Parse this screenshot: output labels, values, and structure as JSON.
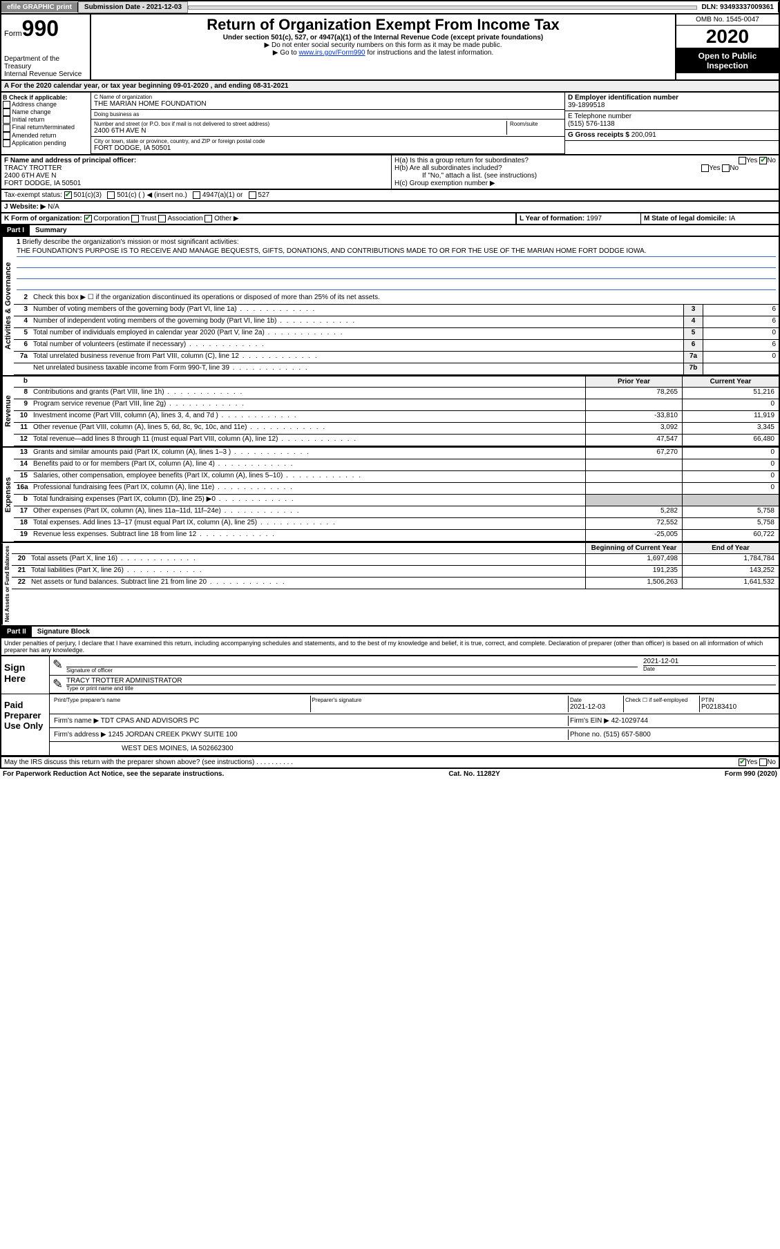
{
  "topbar": {
    "efile": "efile GRAPHIC print",
    "sub_label": "Submission Date - 2021-12-03",
    "dln": "DLN: 93493337009361"
  },
  "header": {
    "form_word": "Form",
    "form_num": "990",
    "dept": "Department of the Treasury\nInternal Revenue Service",
    "title": "Return of Organization Exempt From Income Tax",
    "subtitle": "Under section 501(c), 527, or 4947(a)(1) of the Internal Revenue Code (except private foundations)",
    "note1": "▶ Do not enter social security numbers on this form as it may be made public.",
    "note2_pre": "▶ Go to ",
    "note2_link": "www.irs.gov/Form990",
    "note2_post": " for instructions and the latest information.",
    "omb": "OMB No. 1545-0047",
    "year": "2020",
    "open": "Open to Public Inspection"
  },
  "period": "A For the 2020 calendar year, or tax year beginning 09-01-2020    , and ending 08-31-2021",
  "boxB": {
    "label": "B Check if applicable:",
    "items": [
      "Address change",
      "Name change",
      "Initial return",
      "Final return/terminated",
      "Amended return",
      "Application pending"
    ]
  },
  "boxC": {
    "name_lbl": "C Name of organization",
    "name": "THE MARIAN HOME FOUNDATION",
    "dba_lbl": "Doing business as",
    "dba": "",
    "addr_lbl": "Number and street (or P.O. box if mail is not delivered to street address)",
    "room_lbl": "Room/suite",
    "addr": "2400 6TH AVE N",
    "city_lbl": "City or town, state or province, country, and ZIP or foreign postal code",
    "city": "FORT DODGE, IA  50501"
  },
  "boxD": {
    "lbl": "D Employer identification number",
    "val": "39-1899518"
  },
  "boxE": {
    "lbl": "E Telephone number",
    "val": "(515) 576-1138"
  },
  "boxG": {
    "lbl": "G Gross receipts $",
    "val": "200,091"
  },
  "boxF": {
    "lbl": "F  Name and address of principal officer:",
    "name": "TRACY TROTTER",
    "addr1": "2400 6TH AVE N",
    "addr2": "FORT DODGE, IA  50501"
  },
  "boxH": {
    "a": "H(a)  Is this a group return for subordinates?",
    "b": "H(b)  Are all subordinates included?",
    "b_note": "If \"No,\" attach a list. (see instructions)",
    "c": "H(c)  Group exemption number ▶"
  },
  "boxI": {
    "lbl": "Tax-exempt status:",
    "opts": [
      "501(c)(3)",
      "501(c) (  ) ◀ (insert no.)",
      "4947(a)(1) or",
      "527"
    ]
  },
  "boxJ": {
    "lbl": "J  Website: ▶",
    "val": "N/A"
  },
  "boxK": {
    "lbl": "K Form of organization:",
    "opts": [
      "Corporation",
      "Trust",
      "Association",
      "Other ▶"
    ]
  },
  "boxL": {
    "lbl": "L Year of formation:",
    "val": "1997"
  },
  "boxM": {
    "lbl": "M State of legal domicile:",
    "val": "IA"
  },
  "part1": {
    "hdr": "Part I",
    "title": "Summary",
    "q1": "Briefly describe the organization's mission or most significant activities:",
    "mission": "THE FOUNDATION'S PURPOSE IS TO RECEIVE AND MANAGE BEQUESTS, GIFTS, DONATIONS, AND CONTRIBUTIONS MADE TO OR FOR THE USE OF THE MARIAN HOME FORT DODGE IOWA.",
    "q2": "Check this box ▶ ☐  if the organization discontinued its operations or disposed of more than 25% of its net assets.",
    "lines_gov": [
      {
        "n": "3",
        "t": "Number of voting members of the governing body (Part VI, line 1a)",
        "box": "3",
        "v": "6"
      },
      {
        "n": "4",
        "t": "Number of independent voting members of the governing body (Part VI, line 1b)",
        "box": "4",
        "v": "6"
      },
      {
        "n": "5",
        "t": "Total number of individuals employed in calendar year 2020 (Part V, line 2a)",
        "box": "5",
        "v": "0"
      },
      {
        "n": "6",
        "t": "Total number of volunteers (estimate if necessary)",
        "box": "6",
        "v": "6"
      },
      {
        "n": "7a",
        "t": "Total unrelated business revenue from Part VIII, column (C), line 12",
        "box": "7a",
        "v": "0"
      },
      {
        "n": "",
        "t": "Net unrelated business taxable income from Form 990-T, line 39",
        "box": "7b",
        "v": ""
      }
    ],
    "col_prior": "Prior Year",
    "col_curr": "Current Year",
    "rev_label": "Revenue",
    "exp_label": "Expenses",
    "gov_label": "Activities & Governance",
    "net_label": "Net Assets or Fund Balances",
    "revenue": [
      {
        "n": "8",
        "t": "Contributions and grants (Part VIII, line 1h)",
        "p": "78,265",
        "c": "51,216"
      },
      {
        "n": "9",
        "t": "Program service revenue (Part VIII, line 2g)",
        "p": "",
        "c": "0"
      },
      {
        "n": "10",
        "t": "Investment income (Part VIII, column (A), lines 3, 4, and 7d )",
        "p": "-33,810",
        "c": "11,919"
      },
      {
        "n": "11",
        "t": "Other revenue (Part VIII, column (A), lines 5, 6d, 8c, 9c, 10c, and 11e)",
        "p": "3,092",
        "c": "3,345"
      },
      {
        "n": "12",
        "t": "Total revenue—add lines 8 through 11 (must equal Part VIII, column (A), line 12)",
        "p": "47,547",
        "c": "66,480"
      }
    ],
    "expenses": [
      {
        "n": "13",
        "t": "Grants and similar amounts paid (Part IX, column (A), lines 1–3 )",
        "p": "67,270",
        "c": "0"
      },
      {
        "n": "14",
        "t": "Benefits paid to or for members (Part IX, column (A), line 4)",
        "p": "",
        "c": "0"
      },
      {
        "n": "15",
        "t": "Salaries, other compensation, employee benefits (Part IX, column (A), lines 5–10)",
        "p": "",
        "c": "0"
      },
      {
        "n": "16a",
        "t": "Professional fundraising fees (Part IX, column (A), line 11e)",
        "p": "",
        "c": "0"
      },
      {
        "n": "b",
        "t": "Total fundraising expenses (Part IX, column (D), line 25) ▶0",
        "p": "shaded",
        "c": "shaded"
      },
      {
        "n": "17",
        "t": "Other expenses (Part IX, column (A), lines 11a–11d, 11f–24e)",
        "p": "5,282",
        "c": "5,758"
      },
      {
        "n": "18",
        "t": "Total expenses. Add lines 13–17 (must equal Part IX, column (A), line 25)",
        "p": "72,552",
        "c": "5,758"
      },
      {
        "n": "19",
        "t": "Revenue less expenses. Subtract line 18 from line 12",
        "p": "-25,005",
        "c": "60,722"
      }
    ],
    "col_beg": "Beginning of Current Year",
    "col_end": "End of Year",
    "netassets": [
      {
        "n": "20",
        "t": "Total assets (Part X, line 16)",
        "p": "1,697,498",
        "c": "1,784,784"
      },
      {
        "n": "21",
        "t": "Total liabilities (Part X, line 26)",
        "p": "191,235",
        "c": "143,252"
      },
      {
        "n": "22",
        "t": "Net assets or fund balances. Subtract line 21 from line 20",
        "p": "1,506,263",
        "c": "1,641,532"
      }
    ]
  },
  "part2": {
    "hdr": "Part II",
    "title": "Signature Block",
    "decl": "Under penalties of perjury, I declare that I have examined this return, including accompanying schedules and statements, and to the best of my knowledge and belief, it is true, correct, and complete. Declaration of preparer (other than officer) is based on all information of which preparer has any knowledge.",
    "sign_here": "Sign Here",
    "sig_of_officer": "Signature of officer",
    "date_lbl": "Date",
    "sig_date": "2021-12-01",
    "typed_name": "TRACY TROTTER  ADMINISTRATOR",
    "typed_lbl": "Type or print name and title",
    "paid_prep": "Paid Preparer Use Only",
    "prep_name_lbl": "Print/Type preparer's name",
    "prep_sig_lbl": "Preparer's signature",
    "prep_date_lbl": "Date",
    "prep_date": "2021-12-03",
    "self_emp": "Check ☐ if self-employed",
    "ptin_lbl": "PTIN",
    "ptin": "P02183410",
    "firm_name_lbl": "Firm's name    ▶",
    "firm_name": "TDT CPAS AND ADVISORS PC",
    "firm_ein_lbl": "Firm's EIN ▶",
    "firm_ein": "42-1029744",
    "firm_addr_lbl": "Firm's address ▶",
    "firm_addr1": "1245 JORDAN CREEK PKWY SUITE 100",
    "firm_addr2": "WEST DES MOINES, IA  502662300",
    "phone_lbl": "Phone no.",
    "phone": "(515) 657-5800",
    "discuss": "May the IRS discuss this return with the preparer shown above? (see instructions)"
  },
  "footer": {
    "left": "For Paperwork Reduction Act Notice, see the separate instructions.",
    "mid": "Cat. No. 11282Y",
    "right": "Form 990 (2020)"
  }
}
